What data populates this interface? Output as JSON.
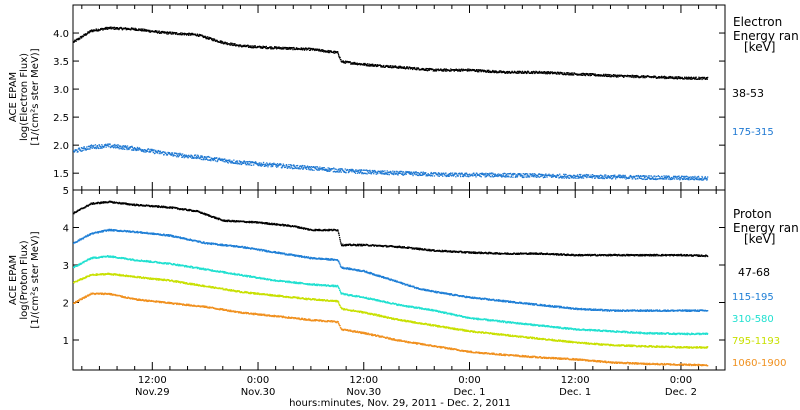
{
  "colors": {
    "black": "#000000",
    "electron_175_315": "#1e78d2",
    "proton_115_195": "#1f7fd6",
    "proton_310_580": "#20e0d0",
    "proton_795_1193": "#c8e000",
    "proton_1060_1900": "#f0901e"
  },
  "x_axis": {
    "title": "hours:minutes, Nov. 29, 2011 - Dec. 2, 2011",
    "ticks": [
      {
        "hour": 12,
        "time": "12:00",
        "day": "Nov.29"
      },
      {
        "hour": 24,
        "time": "0:00",
        "day": "Nov.30"
      },
      {
        "hour": 36,
        "time": "12:00",
        "day": "Nov.30"
      },
      {
        "hour": 48,
        "time": "0:00",
        "day": "Dec. 1"
      },
      {
        "hour": 60,
        "time": "12:00",
        "day": "Dec. 1"
      },
      {
        "hour": 72,
        "time": "0:00",
        "day": "Dec. 2"
      }
    ]
  },
  "chart_data": [
    {
      "type": "scatter",
      "panel": "electron",
      "ylabel": [
        "ACE EPAM",
        "log(Electron Flux)",
        "[1/(cm²s ster MeV)]"
      ],
      "ylim": [
        1.2,
        4.5
      ],
      "yticks": [
        1.5,
        2.0,
        2.5,
        3.0,
        3.5,
        4.0
      ],
      "legend_title": [
        "Electron",
        "Energy ran",
        "[keV]"
      ],
      "xlim_hours": [
        3,
        77
      ],
      "series": [
        {
          "name": "38-53",
          "color_key": "black",
          "x": [
            3.0,
            4.0,
            5.0,
            7.0,
            10.0,
            13.0,
            17.0,
            20.0,
            22.0,
            24.0,
            27.0,
            30.0,
            33.0,
            33.4,
            36.0,
            40.0,
            44.0,
            48.0,
            52.0,
            56.0,
            60.0,
            64.0,
            68.0,
            72.0,
            75.0
          ],
          "y": [
            3.85,
            3.95,
            4.05,
            4.1,
            4.08,
            4.02,
            3.98,
            3.84,
            3.78,
            3.76,
            3.74,
            3.72,
            3.66,
            3.5,
            3.45,
            3.4,
            3.35,
            3.35,
            3.31,
            3.31,
            3.28,
            3.25,
            3.23,
            3.21,
            3.2
          ]
        },
        {
          "name": "175-315",
          "color_key": "electron_175_315",
          "x": [
            3.0,
            5.0,
            7.0,
            10.0,
            14.0,
            18.0,
            22.0,
            26.0,
            30.0,
            34.0,
            38.0,
            42.0,
            46.0,
            50.0,
            54.0,
            58.0,
            62.0,
            66.0,
            70.0,
            75.0
          ],
          "y": [
            1.9,
            1.98,
            2.0,
            1.95,
            1.85,
            1.78,
            1.7,
            1.65,
            1.6,
            1.55,
            1.52,
            1.5,
            1.48,
            1.48,
            1.47,
            1.46,
            1.45,
            1.44,
            1.43,
            1.42
          ]
        }
      ]
    },
    {
      "type": "scatter",
      "panel": "proton",
      "ylabel": [
        "ACE EPAM",
        "log(Proton Flux)",
        "[1/(cm²s ster MeV)]"
      ],
      "ylim": [
        0.2,
        5.0
      ],
      "yticks": [
        1,
        2,
        3,
        4,
        5
      ],
      "legend_title": [
        "Proton",
        "Energy ran",
        "[keV]"
      ],
      "xlim_hours": [
        3,
        77
      ],
      "series": [
        {
          "name": "47-68",
          "color_key": "black",
          "x": [
            3.0,
            5.0,
            7.0,
            10.0,
            14.0,
            17.0,
            20.0,
            24.0,
            28.0,
            30.0,
            33.0,
            33.4,
            36.0,
            40.0,
            44.0,
            48.0,
            52.0,
            56.0,
            60.0,
            64.0,
            68.0,
            72.0,
            75.0
          ],
          "y": [
            4.4,
            4.65,
            4.7,
            4.62,
            4.55,
            4.45,
            4.2,
            4.15,
            4.05,
            3.95,
            3.95,
            3.55,
            3.55,
            3.5,
            3.4,
            3.35,
            3.32,
            3.32,
            3.28,
            3.28,
            3.28,
            3.28,
            3.26
          ]
        },
        {
          "name": "115-195",
          "color_key": "proton_115_195",
          "x": [
            3.0,
            5.0,
            7.0,
            10.0,
            14.0,
            18.0,
            22.0,
            26.0,
            30.0,
            33.0,
            33.4,
            36.0,
            38.0,
            40.0,
            42.0,
            44.0,
            48.0,
            52.0,
            56.0,
            60.0,
            64.0,
            68.0,
            72.0,
            75.0
          ],
          "y": [
            3.6,
            3.85,
            3.95,
            3.9,
            3.8,
            3.6,
            3.5,
            3.35,
            3.2,
            3.15,
            2.95,
            2.85,
            2.7,
            2.55,
            2.4,
            2.3,
            2.15,
            2.05,
            1.95,
            1.85,
            1.8,
            1.8,
            1.8,
            1.8
          ]
        },
        {
          "name": "310-580",
          "color_key": "proton_310_580",
          "x": [
            3.0,
            5.0,
            7.0,
            10.0,
            14.0,
            18.0,
            22.0,
            26.0,
            30.0,
            33.0,
            33.4,
            36.0,
            40.0,
            44.0,
            48.0,
            52.0,
            56.0,
            60.0,
            64.0,
            68.0,
            72.0,
            75.0
          ],
          "y": [
            2.95,
            3.2,
            3.25,
            3.15,
            3.05,
            2.9,
            2.75,
            2.6,
            2.5,
            2.45,
            2.25,
            2.15,
            1.95,
            1.8,
            1.6,
            1.5,
            1.4,
            1.3,
            1.25,
            1.2,
            1.18,
            1.18
          ]
        },
        {
          "name": "795-1193",
          "color_key": "proton_795_1193",
          "x": [
            3.0,
            5.0,
            7.0,
            10.0,
            14.0,
            18.0,
            22.0,
            26.0,
            30.0,
            33.0,
            33.4,
            36.0,
            40.0,
            44.0,
            48.0,
            52.0,
            56.0,
            60.0,
            64.0,
            68.0,
            72.0,
            75.0
          ],
          "y": [
            2.55,
            2.75,
            2.78,
            2.7,
            2.6,
            2.45,
            2.3,
            2.2,
            2.1,
            2.05,
            1.85,
            1.75,
            1.55,
            1.4,
            1.25,
            1.15,
            1.05,
            0.95,
            0.88,
            0.85,
            0.82,
            0.82
          ]
        },
        {
          "name": "1060-1900",
          "color_key": "proton_1060_1900",
          "x": [
            3.0,
            5.0,
            7.0,
            10.0,
            14.0,
            18.0,
            22.0,
            26.0,
            30.0,
            33.0,
            33.4,
            36.0,
            40.0,
            44.0,
            48.0,
            52.0,
            56.0,
            60.0,
            64.0,
            68.0,
            72.0,
            75.0
          ],
          "y": [
            2.0,
            2.25,
            2.25,
            2.1,
            2.0,
            1.9,
            1.75,
            1.65,
            1.55,
            1.5,
            1.3,
            1.2,
            1.0,
            0.85,
            0.7,
            0.62,
            0.55,
            0.5,
            0.42,
            0.38,
            0.36,
            0.35
          ]
        }
      ]
    }
  ]
}
